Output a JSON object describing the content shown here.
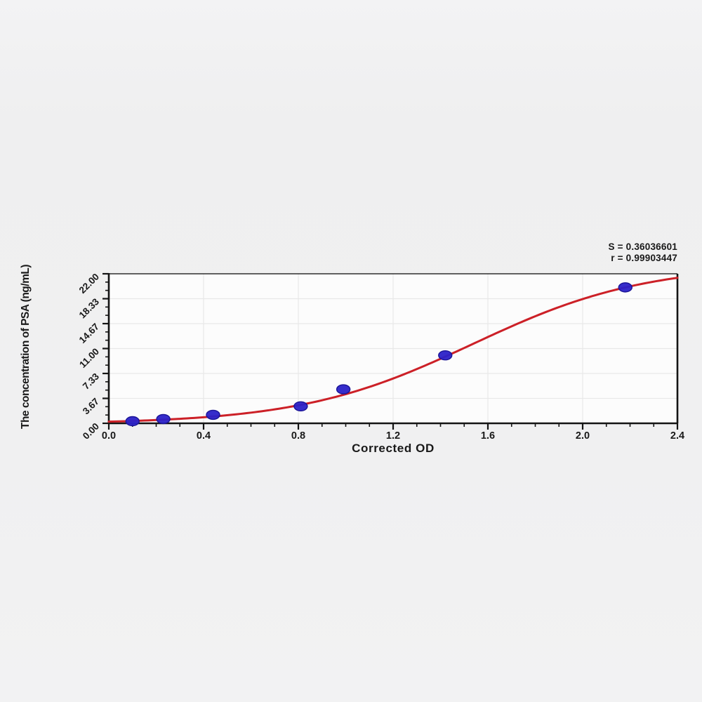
{
  "chart_data": {
    "type": "scatter",
    "title": "",
    "xlabel": "Corrected OD",
    "ylabel": "The concentration of PSA (ng/mL)",
    "xlim": [
      0.0,
      2.4
    ],
    "ylim": [
      0.0,
      22.0
    ],
    "x_tick_labels": [
      "0.0",
      "0.4",
      "0.8",
      "1.2",
      "1.6",
      "2.0",
      "2.4"
    ],
    "x_minor_divisions": 4,
    "y_tick_labels": [
      "0.00",
      "3.67",
      "7.33",
      "11.00",
      "14.67",
      "18.33",
      "22.00"
    ],
    "y_minor_divisions": 3,
    "grid": true,
    "legend": null,
    "stats": {
      "s_label": "S = 0.36036601",
      "r_label": "r = 0.99903447"
    },
    "points": [
      {
        "x": 0.1,
        "y": 0.31
      },
      {
        "x": 0.23,
        "y": 0.63
      },
      {
        "x": 0.44,
        "y": 1.25
      },
      {
        "x": 0.81,
        "y": 2.5
      },
      {
        "x": 0.99,
        "y": 5.0
      },
      {
        "x": 1.42,
        "y": 10.0
      },
      {
        "x": 2.18,
        "y": 20.0
      }
    ],
    "fit_curve": {
      "model": "4PL-logistic",
      "bottom": -0.1,
      "top": 23.4,
      "midpoint_x": 1.535,
      "steepness": 2.75
    },
    "colors": {
      "curve_red": "#cc2027",
      "point_blue": "#2b22c8",
      "point_border": "#1a1496",
      "axis": "#141414",
      "frame_top": "#2e2e2e",
      "grid": "#e8e8e8",
      "plot_background": "#fcfcfc",
      "page_background": "#f0f0f1",
      "text": "#191919"
    }
  }
}
